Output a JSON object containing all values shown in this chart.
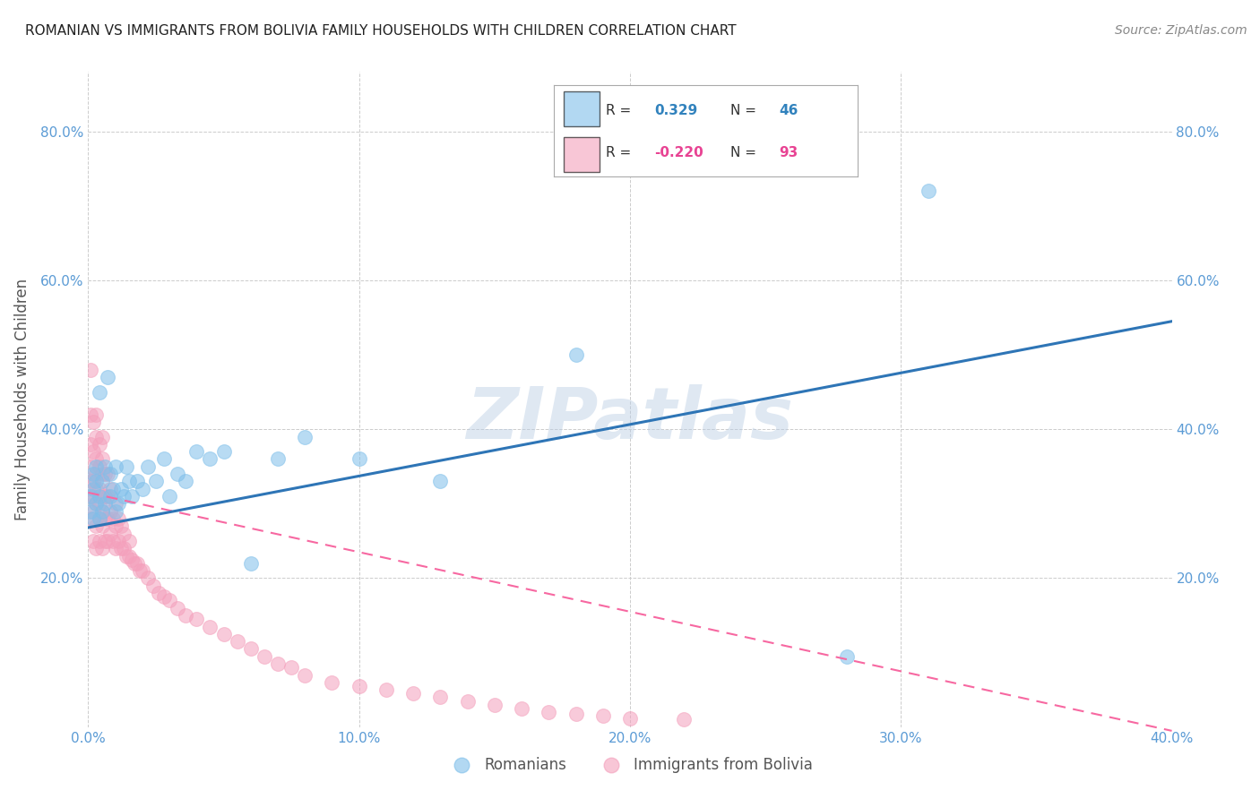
{
  "title": "ROMANIAN VS IMMIGRANTS FROM BOLIVIA FAMILY HOUSEHOLDS WITH CHILDREN CORRELATION CHART",
  "source": "Source: ZipAtlas.com",
  "ylabel_label": "Family Households with Children",
  "legend_r1": "R =  0.329",
  "legend_n1": "N = 46",
  "legend_r2": "R = -0.220",
  "legend_n2": "N = 93",
  "r_color1": "#3182bd",
  "r_color2": "#e84393",
  "watermark": "ZIPatlas",
  "watermark_color": "#b8cce4",
  "background_color": "#ffffff",
  "grid_color": "#cccccc",
  "axis_color": "#5b9bd5",
  "scatter_blue_color": "#7fbfea",
  "scatter_pink_color": "#f4a0bc",
  "line_blue_color": "#2e75b6",
  "line_pink_color": "#f768a1",
  "xlim": [
    0.0,
    0.4
  ],
  "ylim": [
    0.0,
    0.88
  ],
  "blue_scatter_x": [
    0.001,
    0.001,
    0.002,
    0.002,
    0.002,
    0.003,
    0.003,
    0.003,
    0.004,
    0.004,
    0.004,
    0.005,
    0.005,
    0.006,
    0.006,
    0.007,
    0.008,
    0.008,
    0.009,
    0.01,
    0.01,
    0.011,
    0.012,
    0.013,
    0.014,
    0.015,
    0.016,
    0.018,
    0.02,
    0.022,
    0.025,
    0.028,
    0.03,
    0.033,
    0.036,
    0.04,
    0.045,
    0.05,
    0.06,
    0.07,
    0.08,
    0.1,
    0.13,
    0.18,
    0.28,
    0.31
  ],
  "blue_scatter_y": [
    0.29,
    0.31,
    0.28,
    0.32,
    0.34,
    0.3,
    0.33,
    0.35,
    0.28,
    0.31,
    0.45,
    0.29,
    0.33,
    0.3,
    0.35,
    0.47,
    0.31,
    0.34,
    0.32,
    0.29,
    0.35,
    0.3,
    0.32,
    0.31,
    0.35,
    0.33,
    0.31,
    0.33,
    0.32,
    0.35,
    0.33,
    0.36,
    0.31,
    0.34,
    0.33,
    0.37,
    0.36,
    0.37,
    0.22,
    0.36,
    0.39,
    0.36,
    0.33,
    0.5,
    0.095,
    0.72
  ],
  "pink_scatter_x": [
    0.001,
    0.001,
    0.001,
    0.001,
    0.001,
    0.001,
    0.001,
    0.002,
    0.002,
    0.002,
    0.002,
    0.002,
    0.002,
    0.003,
    0.003,
    0.003,
    0.003,
    0.003,
    0.003,
    0.003,
    0.003,
    0.004,
    0.004,
    0.004,
    0.004,
    0.004,
    0.004,
    0.005,
    0.005,
    0.005,
    0.005,
    0.005,
    0.005,
    0.005,
    0.006,
    0.006,
    0.006,
    0.006,
    0.007,
    0.007,
    0.007,
    0.007,
    0.008,
    0.008,
    0.008,
    0.009,
    0.009,
    0.01,
    0.01,
    0.01,
    0.011,
    0.011,
    0.012,
    0.012,
    0.013,
    0.013,
    0.014,
    0.015,
    0.015,
    0.016,
    0.017,
    0.018,
    0.019,
    0.02,
    0.022,
    0.024,
    0.026,
    0.028,
    0.03,
    0.033,
    0.036,
    0.04,
    0.045,
    0.05,
    0.055,
    0.06,
    0.065,
    0.07,
    0.075,
    0.08,
    0.09,
    0.1,
    0.11,
    0.12,
    0.13,
    0.14,
    0.15,
    0.16,
    0.17,
    0.18,
    0.19,
    0.2,
    0.22
  ],
  "pink_scatter_y": [
    0.28,
    0.31,
    0.33,
    0.35,
    0.38,
    0.42,
    0.48,
    0.25,
    0.29,
    0.31,
    0.33,
    0.37,
    0.41,
    0.24,
    0.27,
    0.3,
    0.32,
    0.34,
    0.36,
    0.39,
    0.42,
    0.25,
    0.28,
    0.3,
    0.32,
    0.35,
    0.38,
    0.24,
    0.27,
    0.29,
    0.31,
    0.34,
    0.36,
    0.39,
    0.25,
    0.28,
    0.31,
    0.34,
    0.25,
    0.28,
    0.31,
    0.34,
    0.26,
    0.29,
    0.32,
    0.25,
    0.28,
    0.24,
    0.27,
    0.3,
    0.25,
    0.28,
    0.24,
    0.27,
    0.24,
    0.26,
    0.23,
    0.23,
    0.25,
    0.225,
    0.22,
    0.22,
    0.21,
    0.21,
    0.2,
    0.19,
    0.18,
    0.175,
    0.17,
    0.16,
    0.15,
    0.145,
    0.135,
    0.125,
    0.115,
    0.105,
    0.095,
    0.085,
    0.08,
    0.07,
    0.06,
    0.055,
    0.05,
    0.045,
    0.04,
    0.035,
    0.03,
    0.025,
    0.02,
    0.018,
    0.015,
    0.012,
    0.01
  ],
  "blue_line_x": [
    0.0,
    0.4
  ],
  "blue_line_y": [
    0.268,
    0.545
  ],
  "pink_line_x": [
    0.0,
    0.4
  ],
  "pink_line_y": [
    0.315,
    -0.005
  ],
  "title_fontsize": 11,
  "axis_tick_fontsize": 11,
  "ylabel_fontsize": 12,
  "legend_fontsize": 12,
  "source_fontsize": 10
}
